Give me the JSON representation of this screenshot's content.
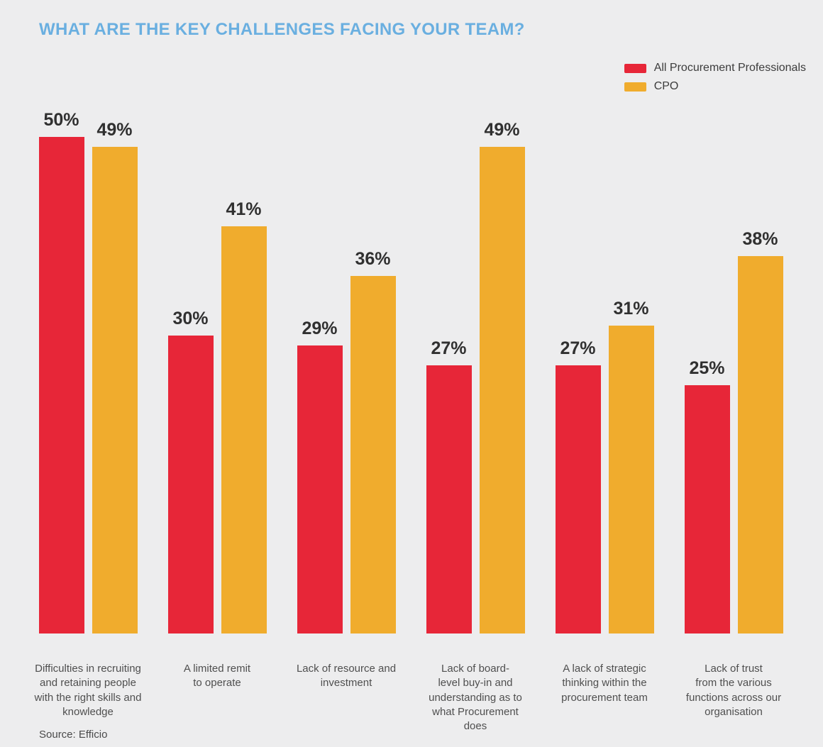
{
  "title": "WHAT ARE THE KEY CHALLENGES FACING YOUR TEAM?",
  "source": "Source: Efficio",
  "colors": {
    "background": "#EDEDEE",
    "title": "#6AAFE0",
    "value_label": "#303030",
    "category_text": "#4F4F4F",
    "legend_text": "#3C3C3C",
    "series_red": "#E72638",
    "series_orange": "#F0AC2D"
  },
  "chart_data": {
    "type": "bar",
    "title": "WHAT ARE THE KEY CHALLENGES FACING YOUR TEAM?",
    "categories": [
      "Difficulties in recruiting and retaining people with the right skills and knowledge",
      "A limited remit to operate",
      "Lack of resource and investment",
      "Lack of board-level buy-in and understanding as to what Procurement does",
      "A lack of strategic thinking within the procurement team",
      "Lack of trust from the various functions across our organisation"
    ],
    "category_lines": [
      [
        "Difficulties in recruiting",
        "and retaining people",
        "with the right skills and",
        "knowledge"
      ],
      [
        "A limited remit",
        "to operate"
      ],
      [
        "Lack of resource and",
        "investment"
      ],
      [
        "Lack of board-",
        "level buy-in and",
        "understanding as to",
        "what Procurement",
        "does"
      ],
      [
        "A lack of strategic",
        "thinking within the",
        "procurement team"
      ],
      [
        "Lack of trust",
        "from the various",
        "functions across our",
        "organisation"
      ]
    ],
    "series": [
      {
        "name": "All Procurement Professionals",
        "color": "#E72638",
        "values": [
          50,
          30,
          29,
          27,
          27,
          25
        ]
      },
      {
        "name": "CPO",
        "color": "#F0AC2D",
        "values": [
          49,
          41,
          36,
          49,
          31,
          38
        ]
      }
    ],
    "value_suffix": "%",
    "ylim": [
      0,
      50
    ],
    "xlabel": "",
    "ylabel": "",
    "grid": false,
    "legend_position": "top-right",
    "value_labels": "above-bars",
    "footnote": "Source: Efficio"
  }
}
